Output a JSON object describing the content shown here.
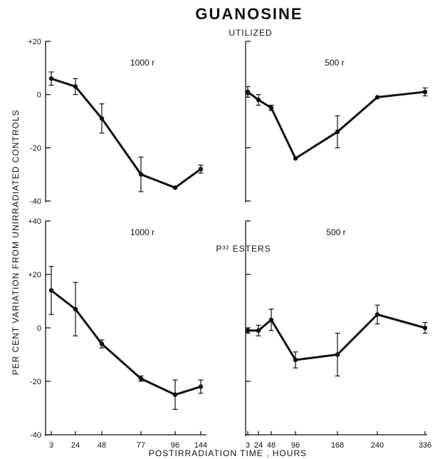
{
  "chart_data": {
    "title": "GUANOSINE",
    "xlabel": "POSTIRRADIATION TIME , HOURS",
    "ylabel": "PER CENT VARIATION FROM UNIRRADIATED CONTROLS",
    "panels": [
      {
        "row_label": "UTILIZED",
        "label": "1000 r",
        "type": "line",
        "ylim": [
          -40,
          20
        ],
        "yticks": [
          "+20",
          "0",
          "-20",
          "-40"
        ],
        "x": [
          3,
          24,
          48,
          77,
          96,
          144
        ],
        "y": [
          6,
          3,
          -9,
          -30,
          -35,
          -28
        ],
        "err": [
          2.5,
          3,
          5.5,
          6.5,
          0,
          1.5
        ]
      },
      {
        "label": "500 r",
        "type": "line",
        "ylim": [
          -40,
          20
        ],
        "x": [
          3,
          24,
          48,
          96,
          168,
          240,
          336
        ],
        "y": [
          1,
          -2,
          -5,
          -24,
          -14,
          -1,
          1
        ],
        "err": [
          2,
          2,
          1,
          0,
          6,
          0,
          1.5
        ]
      },
      {
        "row_label": "P³² ESTERS",
        "label": "1000 r",
        "type": "line",
        "ylim": [
          -40,
          40
        ],
        "yticks": [
          "+40",
          "+20",
          "0",
          "-20",
          "-40"
        ],
        "xticks": [
          "3",
          "24",
          "48",
          "77",
          "96",
          "144"
        ],
        "x": [
          3,
          24,
          48,
          77,
          96,
          144
        ],
        "y": [
          14,
          7,
          -6,
          -19,
          -25,
          -22
        ],
        "err": [
          9,
          10,
          1.5,
          1,
          5.5,
          2.5
        ]
      },
      {
        "label": "500 r",
        "type": "line",
        "ylim": [
          -40,
          40
        ],
        "xticks": [
          "3",
          "24",
          "48",
          "96",
          "168",
          "240",
          "336"
        ],
        "x": [
          3,
          24,
          48,
          96,
          168,
          240,
          336
        ],
        "y": [
          -1,
          -1,
          3,
          -12,
          -10,
          5,
          0
        ],
        "err": [
          1,
          2,
          4,
          3,
          8,
          3.5,
          2
        ]
      }
    ]
  }
}
